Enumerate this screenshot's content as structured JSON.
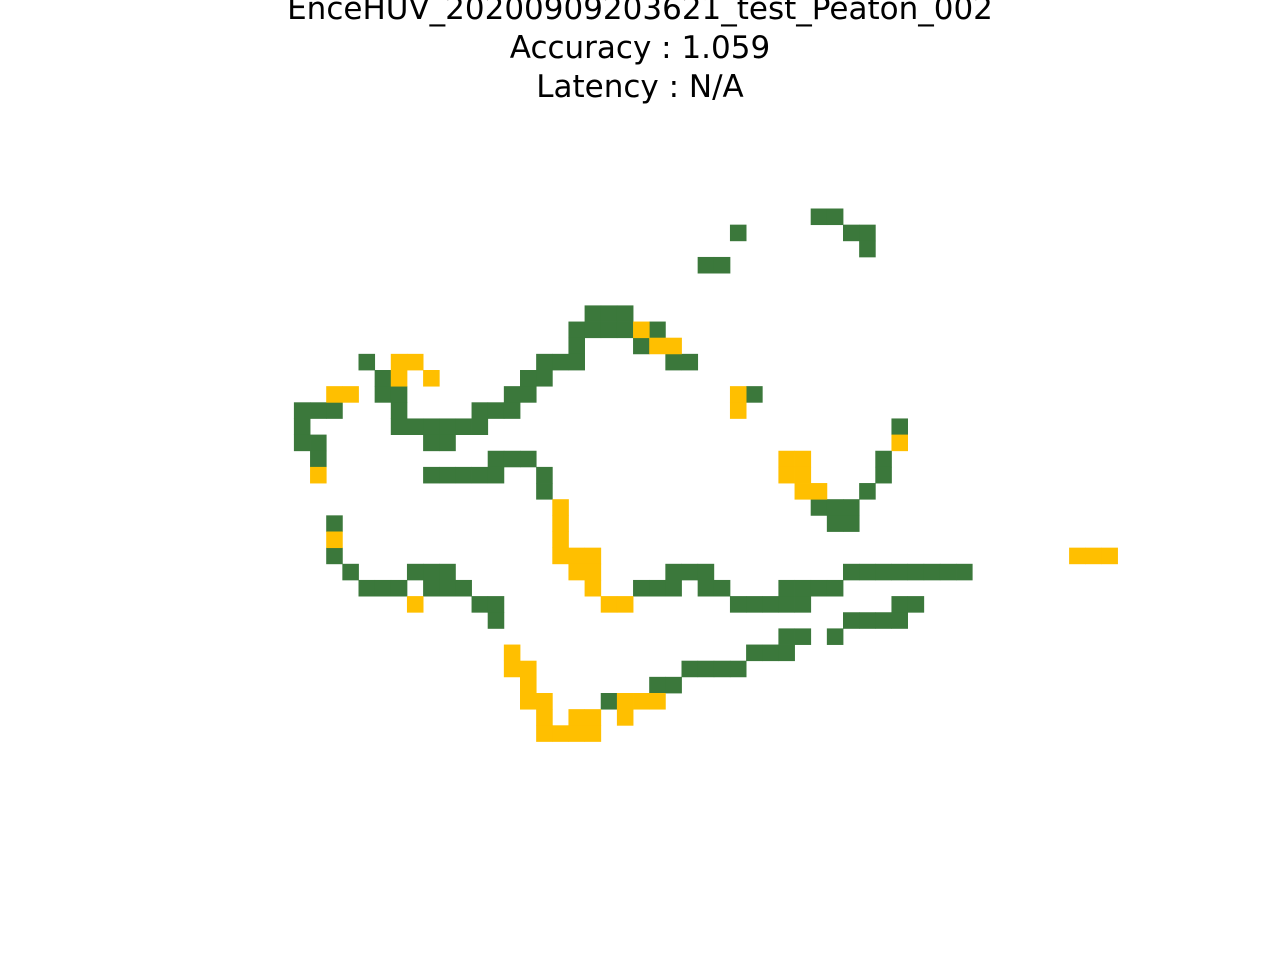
{
  "title": {
    "line1": "EnceHUV_20200909203621_test_Peaton_002",
    "line2": "Accuracy : 1.059",
    "line3": "Latency : N/A"
  },
  "colors": {
    "background": "#ffffff",
    "ground_truth": "#3b783b",
    "prediction": "#ffbf00"
  },
  "chart_data": {
    "type": "heatmap",
    "title": "EnceHUV_20200909203621_test_Peaton_002\nAccuracy : 1.059\nLatency : N/A",
    "xlabel": "",
    "ylabel": "",
    "axes_visible": false,
    "grid": false,
    "xlim": [
      -18,
      22
    ],
    "ylim": [
      -11,
      27
    ],
    "cell_values": {
      "empty": 0,
      "green": 1,
      "yellow": 2
    },
    "green_cells": [
      [
        18,
        0
      ],
      [
        19,
        0
      ],
      [
        13,
        1
      ],
      [
        20,
        1
      ],
      [
        21,
        1
      ],
      [
        21,
        2
      ],
      [
        11,
        3
      ],
      [
        12,
        3
      ],
      [
        4,
        6
      ],
      [
        5,
        6
      ],
      [
        6,
        6
      ],
      [
        3,
        7
      ],
      [
        4,
        7
      ],
      [
        5,
        7
      ],
      [
        6,
        7
      ],
      [
        8,
        7
      ],
      [
        3,
        8
      ],
      [
        7,
        8
      ],
      [
        -10,
        9
      ],
      [
        1,
        9
      ],
      [
        2,
        9
      ],
      [
        3,
        9
      ],
      [
        9,
        9
      ],
      [
        10,
        9
      ],
      [
        -9,
        10
      ],
      [
        0,
        10
      ],
      [
        1,
        10
      ],
      [
        -9,
        11
      ],
      [
        -8,
        11
      ],
      [
        -1,
        11
      ],
      [
        0,
        11
      ],
      [
        14,
        11
      ],
      [
        -14,
        12
      ],
      [
        -13,
        12
      ],
      [
        -12,
        12
      ],
      [
        -8,
        12
      ],
      [
        -3,
        12
      ],
      [
        -2,
        12
      ],
      [
        -1,
        12
      ],
      [
        -14,
        13
      ],
      [
        -8,
        13
      ],
      [
        -7,
        13
      ],
      [
        -6,
        13
      ],
      [
        -5,
        13
      ],
      [
        -4,
        13
      ],
      [
        -3,
        13
      ],
      [
        23,
        13
      ],
      [
        -14,
        14
      ],
      [
        -13,
        14
      ],
      [
        -6,
        14
      ],
      [
        -5,
        14
      ],
      [
        -13,
        15
      ],
      [
        -2,
        15
      ],
      [
        -1,
        15
      ],
      [
        0,
        15
      ],
      [
        22,
        15
      ],
      [
        -6,
        16
      ],
      [
        -5,
        16
      ],
      [
        -4,
        16
      ],
      [
        -3,
        16
      ],
      [
        -2,
        16
      ],
      [
        1,
        16
      ],
      [
        22,
        16
      ],
      [
        1,
        17
      ],
      [
        21,
        17
      ],
      [
        18,
        18
      ],
      [
        19,
        18
      ],
      [
        20,
        18
      ],
      [
        -12,
        19
      ],
      [
        19,
        19
      ],
      [
        20,
        19
      ],
      [
        -12,
        21
      ],
      [
        -11,
        22
      ],
      [
        -7,
        22
      ],
      [
        -6,
        22
      ],
      [
        -5,
        22
      ],
      [
        9,
        22
      ],
      [
        10,
        22
      ],
      [
        11,
        22
      ],
      [
        20,
        22
      ],
      [
        21,
        22
      ],
      [
        22,
        22
      ],
      [
        23,
        22
      ],
      [
        24,
        22
      ],
      [
        25,
        22
      ],
      [
        26,
        22
      ],
      [
        27,
        22
      ],
      [
        -10,
        23
      ],
      [
        -9,
        23
      ],
      [
        -8,
        23
      ],
      [
        -6,
        23
      ],
      [
        -5,
        23
      ],
      [
        -4,
        23
      ],
      [
        7,
        23
      ],
      [
        8,
        23
      ],
      [
        9,
        23
      ],
      [
        11,
        23
      ],
      [
        12,
        23
      ],
      [
        16,
        23
      ],
      [
        17,
        23
      ],
      [
        18,
        23
      ],
      [
        19,
        23
      ],
      [
        -3,
        24
      ],
      [
        -2,
        24
      ],
      [
        13,
        24
      ],
      [
        14,
        24
      ],
      [
        15,
        24
      ],
      [
        16,
        24
      ],
      [
        17,
        24
      ],
      [
        23,
        24
      ],
      [
        24,
        24
      ],
      [
        -2,
        25
      ],
      [
        20,
        25
      ],
      [
        21,
        25
      ],
      [
        22,
        25
      ],
      [
        23,
        25
      ],
      [
        16,
        26
      ],
      [
        17,
        26
      ],
      [
        19,
        26
      ],
      [
        14,
        27
      ],
      [
        15,
        27
      ],
      [
        16,
        27
      ],
      [
        10,
        28
      ],
      [
        11,
        28
      ],
      [
        12,
        28
      ],
      [
        13,
        28
      ],
      [
        8,
        29
      ],
      [
        9,
        29
      ],
      [
        5,
        30
      ]
    ],
    "yellow_cells": [
      [
        7,
        7
      ],
      [
        8,
        8
      ],
      [
        9,
        8
      ],
      [
        -8,
        9
      ],
      [
        -7,
        9
      ],
      [
        -8,
        10
      ],
      [
        -6,
        10
      ],
      [
        -12,
        11
      ],
      [
        -11,
        11
      ],
      [
        13,
        11
      ],
      [
        13,
        12
      ],
      [
        23,
        14
      ],
      [
        16,
        15
      ],
      [
        17,
        15
      ],
      [
        -13,
        16
      ],
      [
        16,
        16
      ],
      [
        17,
        16
      ],
      [
        17,
        17
      ],
      [
        18,
        17
      ],
      [
        2,
        18
      ],
      [
        2,
        19
      ],
      [
        -12,
        20
      ],
      [
        2,
        20
      ],
      [
        2,
        21
      ],
      [
        3,
        21
      ],
      [
        4,
        21
      ],
      [
        34,
        21
      ],
      [
        35,
        21
      ],
      [
        36,
        21
      ],
      [
        3,
        22
      ],
      [
        4,
        22
      ],
      [
        4,
        23
      ],
      [
        5,
        24
      ],
      [
        6,
        24
      ],
      [
        -7,
        24
      ],
      [
        -1,
        27
      ],
      [
        -1,
        28
      ],
      [
        0,
        28
      ],
      [
        0,
        29
      ],
      [
        0,
        30
      ],
      [
        1,
        30
      ],
      [
        6,
        30
      ],
      [
        7,
        30
      ],
      [
        8,
        30
      ],
      [
        1,
        31
      ],
      [
        3,
        31
      ],
      [
        4,
        31
      ],
      [
        6,
        31
      ],
      [
        1,
        32
      ],
      [
        2,
        32
      ],
      [
        3,
        32
      ],
      [
        4,
        32
      ]
    ],
    "notes": "Cells are integer grid coordinates [col,row] of an occupancy-style grid; green = ground truth, yellow = prediction."
  }
}
